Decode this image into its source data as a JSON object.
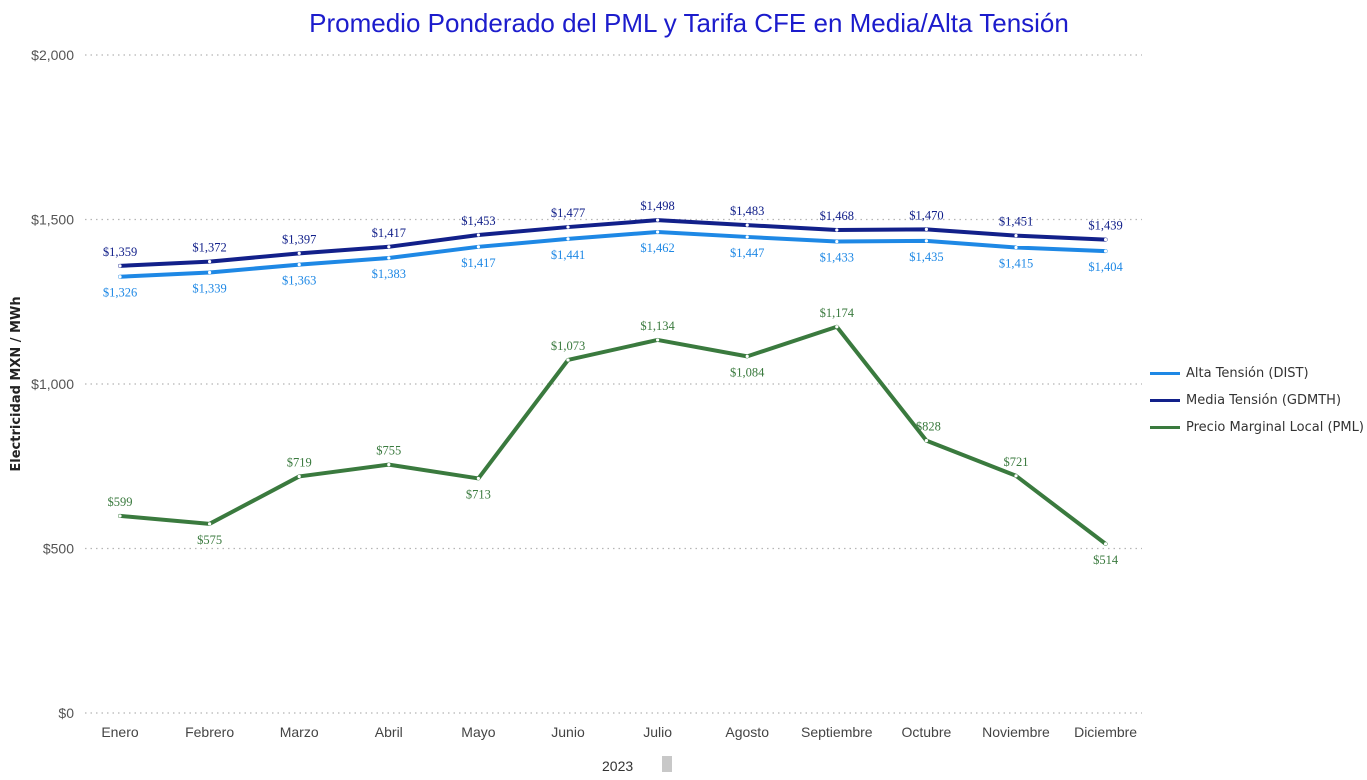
{
  "chart_data": {
    "type": "line",
    "title": "Promedio Ponderado del PML y Tarifa CFE en Media/Alta Tensión",
    "xlabel": "2023",
    "ylabel": "Electricidad MXN / MWh",
    "ylim": [
      0,
      2000
    ],
    "yticks": [
      0,
      500,
      1000,
      1500,
      2000
    ],
    "ytick_labels": [
      "$0",
      "$500",
      "$1,000",
      "$1,500",
      "$2,000"
    ],
    "grid": true,
    "legend_position": "right",
    "categories": [
      "Enero",
      "Febrero",
      "Marzo",
      "Abril",
      "Mayo",
      "Junio",
      "Julio",
      "Agosto",
      "Septiembre",
      "Octubre",
      "Noviembre",
      "Diciembre"
    ],
    "series": [
      {
        "name": "Alta Tensión (DIST)",
        "color": "#1e88e5",
        "label_position": "below",
        "values": [
          1326,
          1339,
          1363,
          1383,
          1417,
          1441,
          1462,
          1447,
          1433,
          1435,
          1415,
          1404
        ],
        "labels": [
          "$1,326",
          "$1,339",
          "$1,363",
          "$1,383",
          "$1,417",
          "$1,441",
          "$1,462",
          "$1,447",
          "$1,433",
          "$1,435",
          "$1,415",
          "$1,404"
        ]
      },
      {
        "name": "Media Tensión (GDMTH)",
        "color": "#12208a",
        "label_position": "above",
        "values": [
          1359,
          1372,
          1397,
          1417,
          1453,
          1477,
          1498,
          1483,
          1468,
          1470,
          1451,
          1439
        ],
        "labels": [
          "$1,359",
          "$1,372",
          "$1,397",
          "$1,417",
          "$1,453",
          "$1,477",
          "$1,498",
          "$1,483",
          "$1,468",
          "$1,470",
          "$1,451",
          "$1,439"
        ]
      },
      {
        "name": "Precio Marginal Local (PML)",
        "color": "#3a7a3e",
        "label_position": "mixed",
        "values": [
          599,
          575,
          719,
          755,
          713,
          1073,
          1134,
          1084,
          1174,
          828,
          721,
          514
        ],
        "labels": [
          "$599",
          "$575",
          "$719",
          "$755",
          "$713",
          "$1,073",
          "$1,134",
          "$1,084",
          "$1,174",
          "$828",
          "$721",
          "$514"
        ],
        "label_sides": [
          "above",
          "below",
          "above",
          "above",
          "below",
          "above",
          "above",
          "below",
          "above",
          "above",
          "above",
          "below"
        ]
      }
    ]
  }
}
